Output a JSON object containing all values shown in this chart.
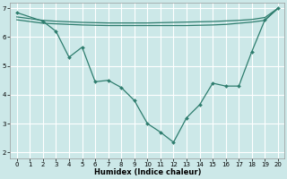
{
  "xlabel": "Humidex (Indice chaleur)",
  "bg_color": "#cce8e8",
  "grid_color": "#ffffff",
  "line_color": "#2e7d6e",
  "xlim": [
    -0.5,
    20.5
  ],
  "ylim": [
    1.8,
    7.2
  ],
  "xticks": [
    0,
    1,
    2,
    3,
    4,
    5,
    6,
    7,
    8,
    9,
    10,
    11,
    12,
    13,
    14,
    15,
    16,
    17,
    18,
    19,
    20
  ],
  "yticks": [
    2,
    3,
    4,
    5,
    6,
    7
  ],
  "line1_x": [
    0,
    2,
    3,
    4,
    5,
    6,
    7,
    8,
    9,
    10,
    11,
    12,
    13,
    14,
    15,
    16,
    17,
    18,
    19,
    20
  ],
  "line1_y": [
    6.85,
    6.55,
    6.2,
    5.3,
    5.65,
    4.45,
    4.5,
    4.25,
    3.8,
    3.0,
    2.7,
    2.35,
    3.2,
    3.65,
    4.4,
    4.3,
    4.3,
    5.5,
    6.6,
    7.0
  ],
  "line2_x": [
    0,
    2,
    3,
    4,
    5,
    6,
    7,
    8,
    9,
    10,
    11,
    12,
    13,
    14,
    15,
    16,
    17,
    18,
    19,
    20
  ],
  "line2_y": [
    6.7,
    6.58,
    6.55,
    6.53,
    6.51,
    6.5,
    6.49,
    6.49,
    6.49,
    6.49,
    6.5,
    6.51,
    6.52,
    6.53,
    6.54,
    6.56,
    6.58,
    6.61,
    6.68,
    7.0
  ],
  "line3_x": [
    0,
    2,
    3,
    4,
    5,
    6,
    7,
    8,
    9,
    10,
    11,
    12,
    13,
    14,
    15,
    16,
    17,
    18,
    19,
    20
  ],
  "line3_y": [
    6.6,
    6.48,
    6.46,
    6.44,
    6.42,
    6.41,
    6.4,
    6.4,
    6.4,
    6.4,
    6.4,
    6.4,
    6.4,
    6.41,
    6.42,
    6.44,
    6.48,
    6.52,
    6.58,
    7.0
  ],
  "xlabel_fontsize": 6,
  "tick_fontsize": 5
}
